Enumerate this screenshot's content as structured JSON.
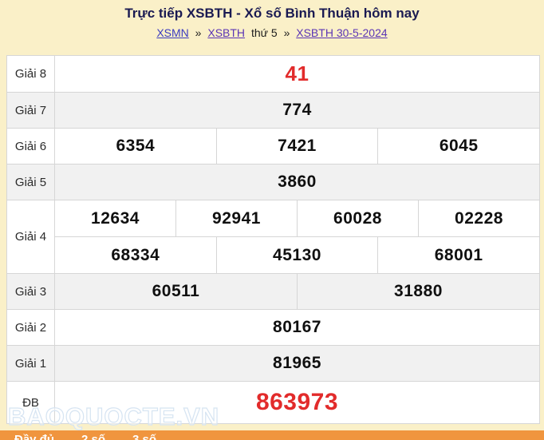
{
  "header": {
    "title": "Trực tiếp XSBTH - Xổ số Bình Thuận hôm nay",
    "breadcrumb": {
      "parts": [
        {
          "text": "XSMN",
          "kind": "link"
        },
        {
          "text": "»",
          "kind": "sep"
        },
        {
          "text": "XSBTH",
          "kind": "link-visited"
        },
        {
          "text": "thứ 5",
          "kind": "text"
        },
        {
          "text": "»",
          "kind": "sep"
        },
        {
          "text": "XSBTH 30-5-2024",
          "kind": "link-visited"
        }
      ]
    }
  },
  "results_table": {
    "rows": [
      {
        "id": "giai-8",
        "label": "Giải 8",
        "style": "red-medium",
        "zebra": false,
        "groups": [
          [
            "41"
          ]
        ]
      },
      {
        "id": "giai-7",
        "label": "Giải 7",
        "style": "normal",
        "zebra": true,
        "groups": [
          [
            "774"
          ]
        ]
      },
      {
        "id": "giai-6",
        "label": "Giải 6",
        "style": "normal",
        "zebra": false,
        "groups": [
          [
            "6354",
            "7421",
            "6045"
          ]
        ]
      },
      {
        "id": "giai-5",
        "label": "Giải 5",
        "style": "normal",
        "zebra": true,
        "groups": [
          [
            "3860"
          ]
        ]
      },
      {
        "id": "giai-4",
        "label": "Giải 4",
        "style": "normal",
        "zebra": false,
        "groups": [
          [
            "12634",
            "92941",
            "60028",
            "02228"
          ],
          [
            "68334",
            "45130",
            "68001"
          ]
        ]
      },
      {
        "id": "giai-3",
        "label": "Giải 3",
        "style": "normal",
        "zebra": true,
        "groups": [
          [
            "60511",
            "31880"
          ]
        ]
      },
      {
        "id": "giai-2",
        "label": "Giải 2",
        "style": "normal",
        "zebra": false,
        "groups": [
          [
            "80167"
          ]
        ]
      },
      {
        "id": "giai-1",
        "label": "Giải 1",
        "style": "normal",
        "zebra": true,
        "groups": [
          [
            "81965"
          ]
        ]
      },
      {
        "id": "giai-db",
        "label": "ĐB",
        "style": "red-large",
        "zebra": false,
        "groups": [
          [
            "863973"
          ]
        ]
      }
    ]
  },
  "watermark": "BAOQUOCTE.VN",
  "footer": {
    "tabs": [
      "Đầy đủ",
      "2 số",
      "3 số"
    ]
  },
  "colors": {
    "page_background": "#FAF0C8",
    "title_text": "#1A1A52",
    "link_blue": "#3B3BC0",
    "link_visited": "#5B35B5",
    "row_alt_gray": "#F1F1F1",
    "table_border": "#D6D6D6",
    "highlight_red": "#E22B2B",
    "footer_orange": "#F0953E",
    "watermark_outline": "#D6E4F2"
  }
}
